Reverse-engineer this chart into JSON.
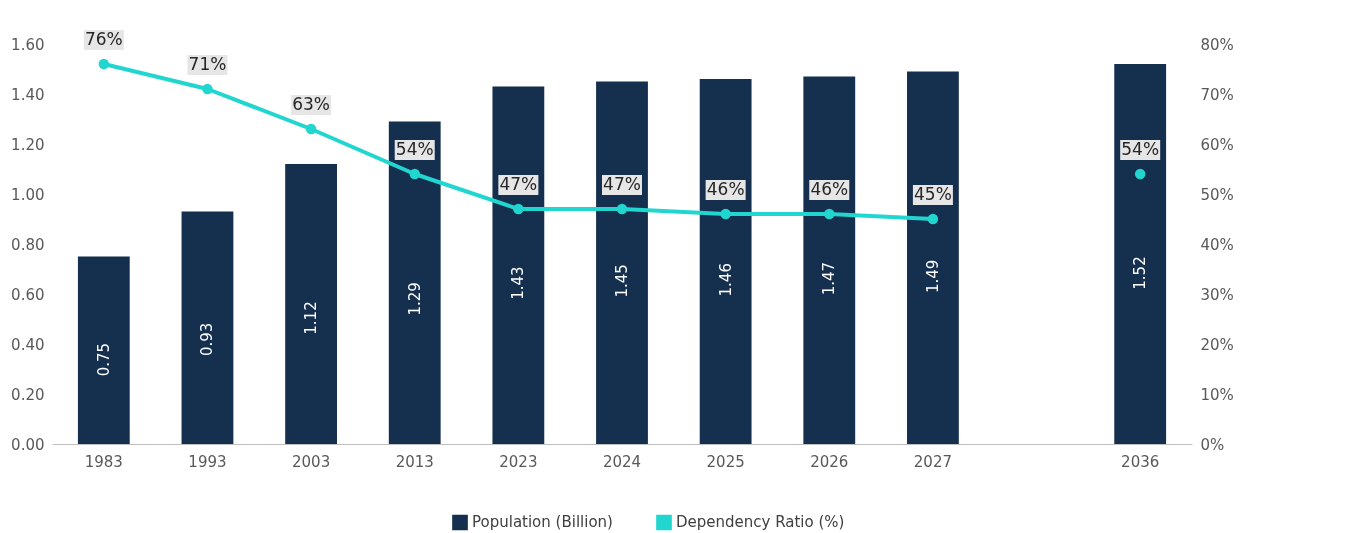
{
  "chart_data": {
    "type": "bar",
    "categories": [
      "1983",
      "1993",
      "2003",
      "2013",
      "2023",
      "2024",
      "2025",
      "2026",
      "2027",
      null,
      "2036"
    ],
    "series": [
      {
        "name": "Population (Billion)",
        "color": "#152f4f",
        "values": [
          0.75,
          0.93,
          1.12,
          1.29,
          1.43,
          1.45,
          1.46,
          1.47,
          1.49,
          null,
          1.52
        ],
        "value_labels": [
          "0.75",
          "0.93",
          "1.12",
          "1.29",
          "1.43",
          "1.45",
          "1.46",
          "1.47",
          "1.49",
          null,
          "1.52"
        ]
      },
      {
        "name": "Dependency Ratio (%)",
        "type": "line",
        "axis": "y2",
        "color": "#22d6d0",
        "values": [
          76,
          71,
          63,
          54,
          47,
          47,
          46,
          46,
          45,
          null,
          54
        ],
        "value_labels": [
          "76%",
          "71%",
          "63%",
          "54%",
          "47%",
          "47%",
          "46%",
          "46%",
          "45%",
          null,
          "54%"
        ]
      }
    ],
    "ylim": [
      0,
      1.6
    ],
    "yticks": [
      {
        "value": 0,
        "label": "0.00"
      },
      {
        "value": 0.2,
        "label": "0.20"
      },
      {
        "value": 0.4,
        "label": "0.40"
      },
      {
        "value": 0.6,
        "label": "0.60"
      },
      {
        "value": 0.8,
        "label": "0.80"
      },
      {
        "value": 1.0,
        "label": "1.00"
      },
      {
        "value": 1.2,
        "label": "1.20"
      },
      {
        "value": 1.4,
        "label": "1.40"
      },
      {
        "value": 1.6,
        "label": "1.60"
      }
    ],
    "y2lim": [
      0,
      80
    ],
    "y2ticks": [
      {
        "value": 0,
        "label": "0%"
      },
      {
        "value": 10,
        "label": "10%"
      },
      {
        "value": 20,
        "label": "20%"
      },
      {
        "value": 30,
        "label": "30%"
      },
      {
        "value": 40,
        "label": "40%"
      },
      {
        "value": 50,
        "label": "50%"
      },
      {
        "value": 60,
        "label": "60%"
      },
      {
        "value": 70,
        "label": "70%"
      },
      {
        "value": 80,
        "label": "80%"
      }
    ],
    "legend": "bottom",
    "marker": "circle",
    "grid": false
  }
}
